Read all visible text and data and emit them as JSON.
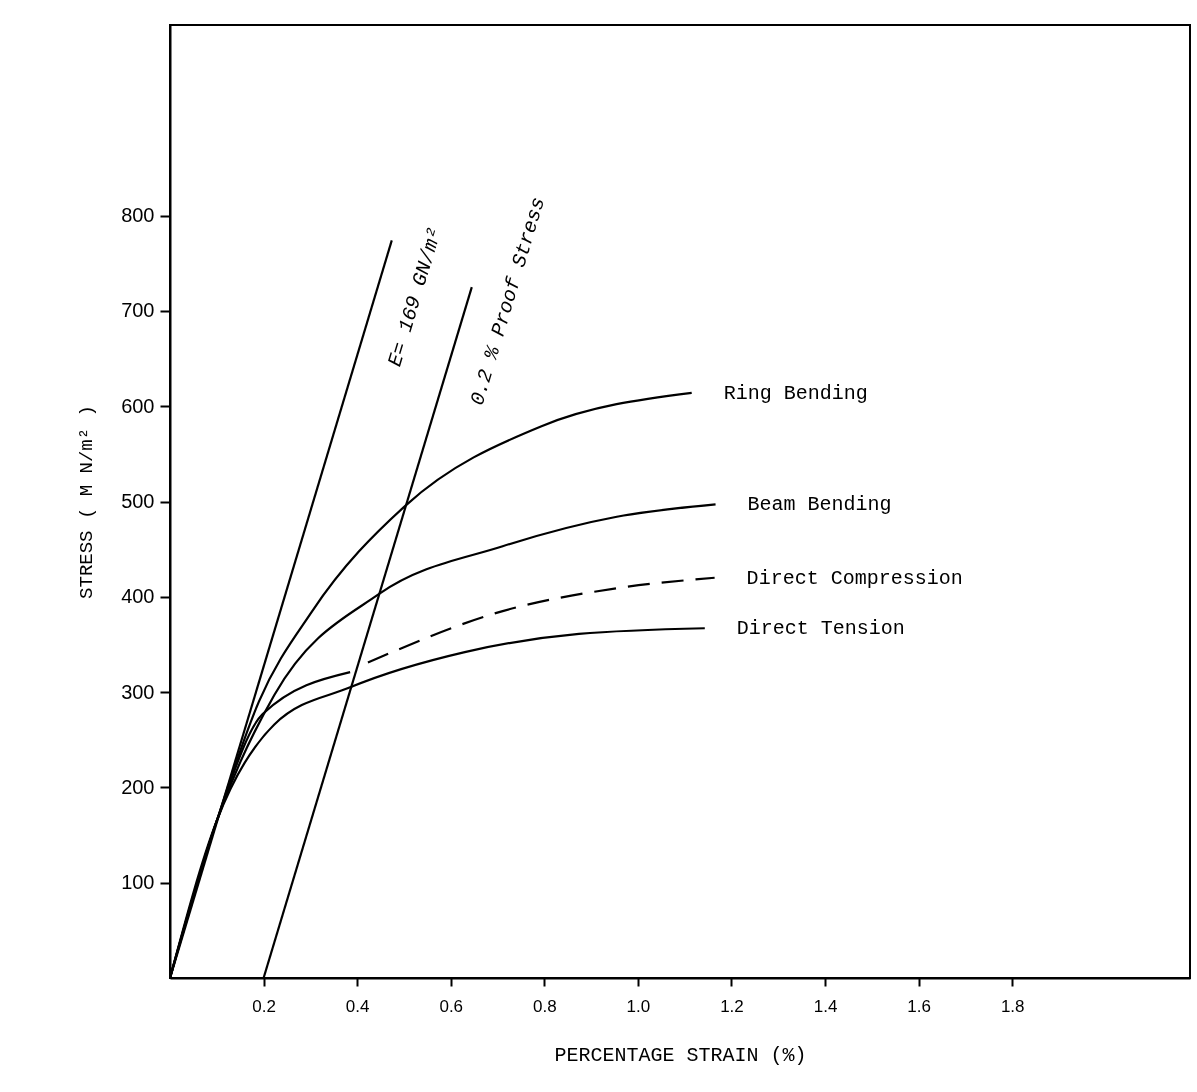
{
  "chart_data": {
    "type": "line",
    "xlabel": "PERCENTAGE STRAIN (%)",
    "ylabel": "STRESS ( M N/m² )",
    "xlim": [
      0,
      2.18
    ],
    "ylim": [
      0,
      1000
    ],
    "xticks": [
      0.2,
      0.4,
      0.6,
      0.8,
      {
        "value": 1.0,
        "label": "1.0"
      },
      1.2,
      1.4,
      1.6,
      1.8
    ],
    "yticks": [
      100,
      200,
      300,
      400,
      500,
      600,
      700,
      800
    ],
    "grid": false,
    "series": [
      {
        "name": "E= 169 GN/m²",
        "color": "#000000",
        "line_style": "solid",
        "x": [
          0,
          0.474
        ],
        "values": [
          0,
          774
        ]
      },
      {
        "name": "0.2 % Proof Stress",
        "color": "#000000",
        "line_style": "solid",
        "x": [
          0.2,
          0.645
        ],
        "values": [
          0,
          725
        ]
      },
      {
        "name": "Ring Bending",
        "color": "#000000",
        "line_style": "solid",
        "x": [
          0,
          0.1,
          0.19,
          0.304,
          0.504,
          0.794,
          1.115
        ],
        "values": [
          0,
          165,
          290,
          385,
          496,
          579,
          614
        ]
      },
      {
        "name": "Beam Bending",
        "color": "#000000",
        "line_style": "solid",
        "x": [
          0,
          0.1,
          0.223,
          0.447,
          0.711,
          0.955,
          1.166
        ],
        "values": [
          0,
          165,
          297,
          403,
          453,
          484,
          497
        ]
      },
      {
        "color": "#000000",
        "line_style": "solid",
        "x": [
          0,
          0.1,
          0.198,
          0.385
        ],
        "values": [
          0,
          165,
          277,
          321
        ]
      },
      {
        "name": "Direct Compression",
        "color": "#000000",
        "line_style": "dashed",
        "x": [
          0.423,
          0.711,
          0.955,
          1.164
        ],
        "values": [
          331,
          385,
          409,
          420
        ]
      },
      {
        "name": "Direct Tension",
        "color": "#000000",
        "line_style": "solid",
        "x": [
          0,
          0.1,
          0.223,
          0.385,
          0.63,
          0.874,
          1.143
        ],
        "values": [
          0,
          165,
          266,
          305,
          342,
          361,
          367
        ]
      }
    ]
  }
}
